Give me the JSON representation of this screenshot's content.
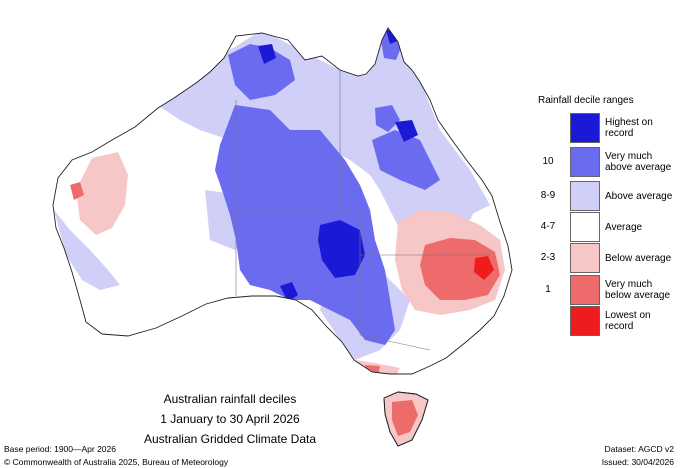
{
  "colors": {
    "ocean": "#ffffff",
    "coast": "#222222",
    "highest_on_record": "#1a1ad6",
    "very_much_above_average": "#6b6bf0",
    "above_average": "#cfcff7",
    "average": "#ffffff",
    "below_average": "#f7c6c6",
    "very_much_below_average": "#ee6b6b",
    "lowest_on_record": "#ee1c1c"
  },
  "legend": {
    "title": "Rainfall decile ranges",
    "items": [
      {
        "range": "",
        "label": "Highest on record",
        "color": "#1a1ad6"
      },
      {
        "range": "10",
        "label": "Very much above average",
        "color": "#6b6bf0"
      },
      {
        "range": "8-9",
        "label": "Above average",
        "color": "#cfcff7"
      },
      {
        "range": "4-7",
        "label": "Average",
        "color": "#ffffff"
      },
      {
        "range": "2-3",
        "label": "Below average",
        "color": "#f7c6c6"
      },
      {
        "range": "1",
        "label": "Very much below average",
        "color": "#ee6b6b"
      },
      {
        "range": "",
        "label": "Lowest on record",
        "color": "#ee1c1c"
      }
    ]
  },
  "caption": {
    "line1": "Australian rainfall deciles",
    "line2": "1 January to 30 April 2026",
    "line3": "Australian Gridded Climate Data"
  },
  "footer": {
    "base_period": "Base period: 1900—Apr 2026",
    "dataset": "Dataset: AGCD v2",
    "copyright": "© Commonwealth of Australia 2025, Bureau of Meteorology",
    "issued": "Issued: 30/04/2026"
  }
}
